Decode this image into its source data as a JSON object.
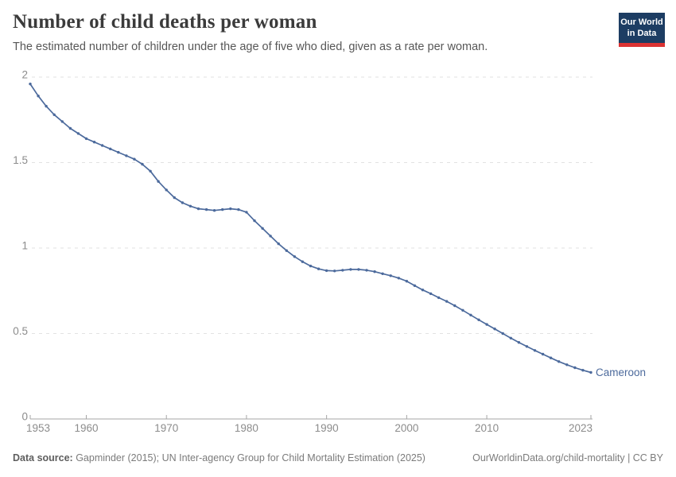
{
  "header": {
    "title": "Number of child deaths per woman",
    "subtitle": "The estimated number of children under the age of five who died, given as a rate per woman.",
    "logo": {
      "line1": "Our World",
      "line2": "in Data",
      "bg_color": "#1d3d63",
      "accent_color": "#dc3333"
    }
  },
  "chart_data": {
    "type": "line",
    "title": "Number of child deaths per woman",
    "subtitle": "The estimated number of children under the age of five who died, given as a rate per woman.",
    "xlabel": "",
    "ylabel": "",
    "xlim": [
      1953,
      2023
    ],
    "ylim": [
      0,
      2
    ],
    "x_ticks": [
      1953,
      1960,
      1970,
      1980,
      1990,
      2000,
      2010,
      2023
    ],
    "y_ticks": [
      0,
      0.5,
      1,
      1.5,
      2
    ],
    "grid": "horizontal-dashed",
    "legend_position": "end-of-line-label",
    "series": [
      {
        "name": "Cameroon",
        "color": "#4c6a9c",
        "x": [
          1953,
          1954,
          1955,
          1956,
          1957,
          1958,
          1959,
          1960,
          1961,
          1962,
          1963,
          1964,
          1965,
          1966,
          1967,
          1968,
          1969,
          1970,
          1971,
          1972,
          1973,
          1974,
          1975,
          1976,
          1977,
          1978,
          1979,
          1980,
          1981,
          1982,
          1983,
          1984,
          1985,
          1986,
          1987,
          1988,
          1989,
          1990,
          1991,
          1992,
          1993,
          1994,
          1995,
          1996,
          1997,
          1998,
          1999,
          2000,
          2001,
          2002,
          2003,
          2004,
          2005,
          2006,
          2007,
          2008,
          2009,
          2010,
          2011,
          2012,
          2013,
          2014,
          2015,
          2016,
          2017,
          2018,
          2019,
          2020,
          2021,
          2022,
          2023
        ],
        "values": [
          1.96,
          1.89,
          1.83,
          1.78,
          1.74,
          1.7,
          1.67,
          1.64,
          1.62,
          1.6,
          1.58,
          1.56,
          1.54,
          1.52,
          1.49,
          1.45,
          1.39,
          1.34,
          1.295,
          1.265,
          1.245,
          1.23,
          1.225,
          1.22,
          1.225,
          1.23,
          1.225,
          1.21,
          1.16,
          1.115,
          1.07,
          1.025,
          0.985,
          0.95,
          0.92,
          0.895,
          0.878,
          0.868,
          0.866,
          0.87,
          0.875,
          0.875,
          0.87,
          0.862,
          0.85,
          0.838,
          0.824,
          0.806,
          0.78,
          0.755,
          0.733,
          0.71,
          0.688,
          0.663,
          0.636,
          0.608,
          0.58,
          0.553,
          0.527,
          0.5,
          0.473,
          0.448,
          0.424,
          0.401,
          0.379,
          0.357,
          0.336,
          0.317,
          0.3,
          0.285,
          0.272
        ]
      }
    ],
    "end_label": "Cameroon"
  },
  "footer": {
    "source_label": "Data source:",
    "source_text": " Gapminder (2015); UN Inter-agency Group for Child Mortality Estimation (2025)",
    "link_text": "OurWorldinData.org/child-mortality | CC BY"
  }
}
